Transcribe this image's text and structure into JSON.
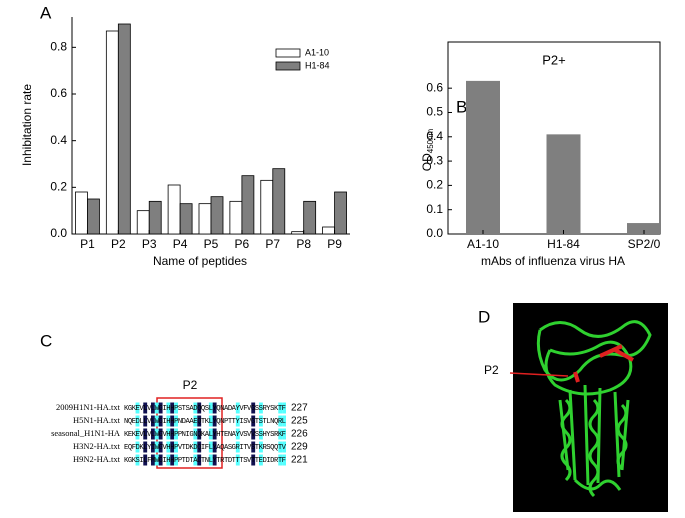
{
  "chart_data": [
    {
      "type": "bar",
      "panel": "A",
      "xlabel": "Name of peptides",
      "ylabel": "Inhibitation rate",
      "categories": [
        "P1",
        "P2",
        "P3",
        "P4",
        "P5",
        "P6",
        "P7",
        "P8",
        "P9"
      ],
      "series": [
        {
          "name": "A1-10",
          "color": "#ffffff",
          "values": [
            0.18,
            0.87,
            0.1,
            0.21,
            0.13,
            0.14,
            0.23,
            0.01,
            0.03
          ]
        },
        {
          "name": "H1-84",
          "color": "#7f7f7f",
          "values": [
            0.15,
            0.9,
            0.14,
            0.13,
            0.16,
            0.25,
            0.28,
            0.14,
            0.18
          ]
        }
      ],
      "ylim": [
        0,
        0.93
      ],
      "yticks": [
        {
          "value": 0,
          "label": "0.0"
        },
        0.2,
        0.4,
        0.6,
        0.8
      ],
      "legend": "upper right"
    },
    {
      "type": "bar",
      "panel": "B",
      "title": "P2+",
      "xlabel": "mAbs of influenza virus HA",
      "ylabel": "OD",
      "ylabel_sub": "450nm",
      "categories": [
        "A1-10",
        "H1-84",
        "SP2/0"
      ],
      "values": [
        0.63,
        0.41,
        0.045
      ],
      "color": "#7f7f7f",
      "ylim": [
        0,
        0.79
      ],
      "yticks": [
        {
          "value": 0,
          "label": "0.0"
        },
        0.1,
        0.2,
        0.3,
        0.4,
        0.5,
        0.6
      ]
    }
  ],
  "alignment": {
    "panel": "C",
    "region_label": "P2",
    "rows": [
      {
        "name": "2009H1N1-HA.txt",
        "sequence": "KGKEVLVLWGIHHPSTSADQQSLYQNADAYVFVGSSRYSKTF",
        "end": "227"
      },
      {
        "name": "H5N1-HA.txt",
        "sequence": "NQEDLLVLWGIHHPNDAAEQTKLYQNPTTYISVGTSTLNQRL",
        "end": "225"
      },
      {
        "name": "seasonal_H1N1-HA",
        "sequence": "KEKEVLVLWGVHHPPNIGNQKALYHTENAYVSVVSSHYSRKF",
        "end": "226"
      },
      {
        "name": "H3N2-HA.txt",
        "sequence": "EQFDKLYIWGVHHPVTDKDQIFLYAQASGRITVSTKRSQQTV",
        "end": "229"
      },
      {
        "name": "H9N2-HA.txt",
        "sequence": "KGKSILFMWGIHHPPTDTACTNLYTRTDTTTSVTTEDIDRTF",
        "end": "221"
      }
    ]
  },
  "structure": {
    "panel": "D",
    "label": "P2"
  }
}
